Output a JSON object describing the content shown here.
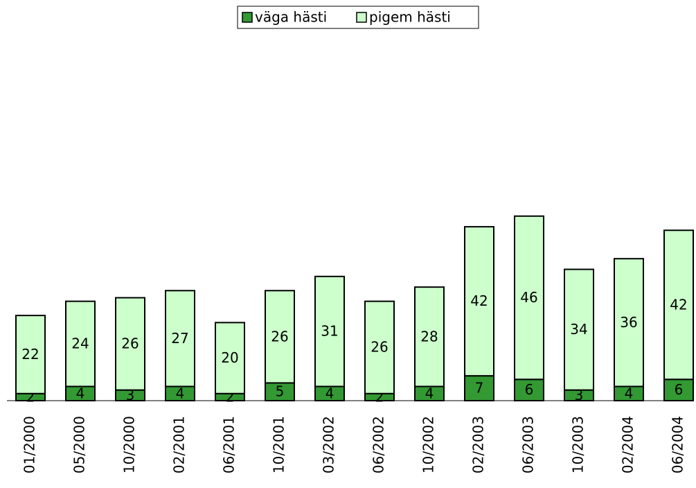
{
  "chart_data": {
    "type": "stacked-bar",
    "categories": [
      "01/2000",
      "05/2000",
      "10/2000",
      "02/2001",
      "06/2001",
      "10/2001",
      "03/2002",
      "06/2002",
      "10/2002",
      "02/2003",
      "06/2003",
      "10/2003",
      "02/2004",
      "06/2004"
    ],
    "series": [
      {
        "name": "väga hästi",
        "color": "#339933",
        "values": [
          2,
          4,
          3,
          4,
          2,
          5,
          4,
          2,
          4,
          7,
          6,
          3,
          4,
          6
        ]
      },
      {
        "name": "pigem hästi",
        "color": "#ccffcc",
        "values": [
          22,
          24,
          26,
          27,
          20,
          26,
          31,
          26,
          28,
          42,
          46,
          34,
          36,
          42
        ]
      }
    ],
    "ylim": [
      0,
      100
    ],
    "legend": "top"
  }
}
